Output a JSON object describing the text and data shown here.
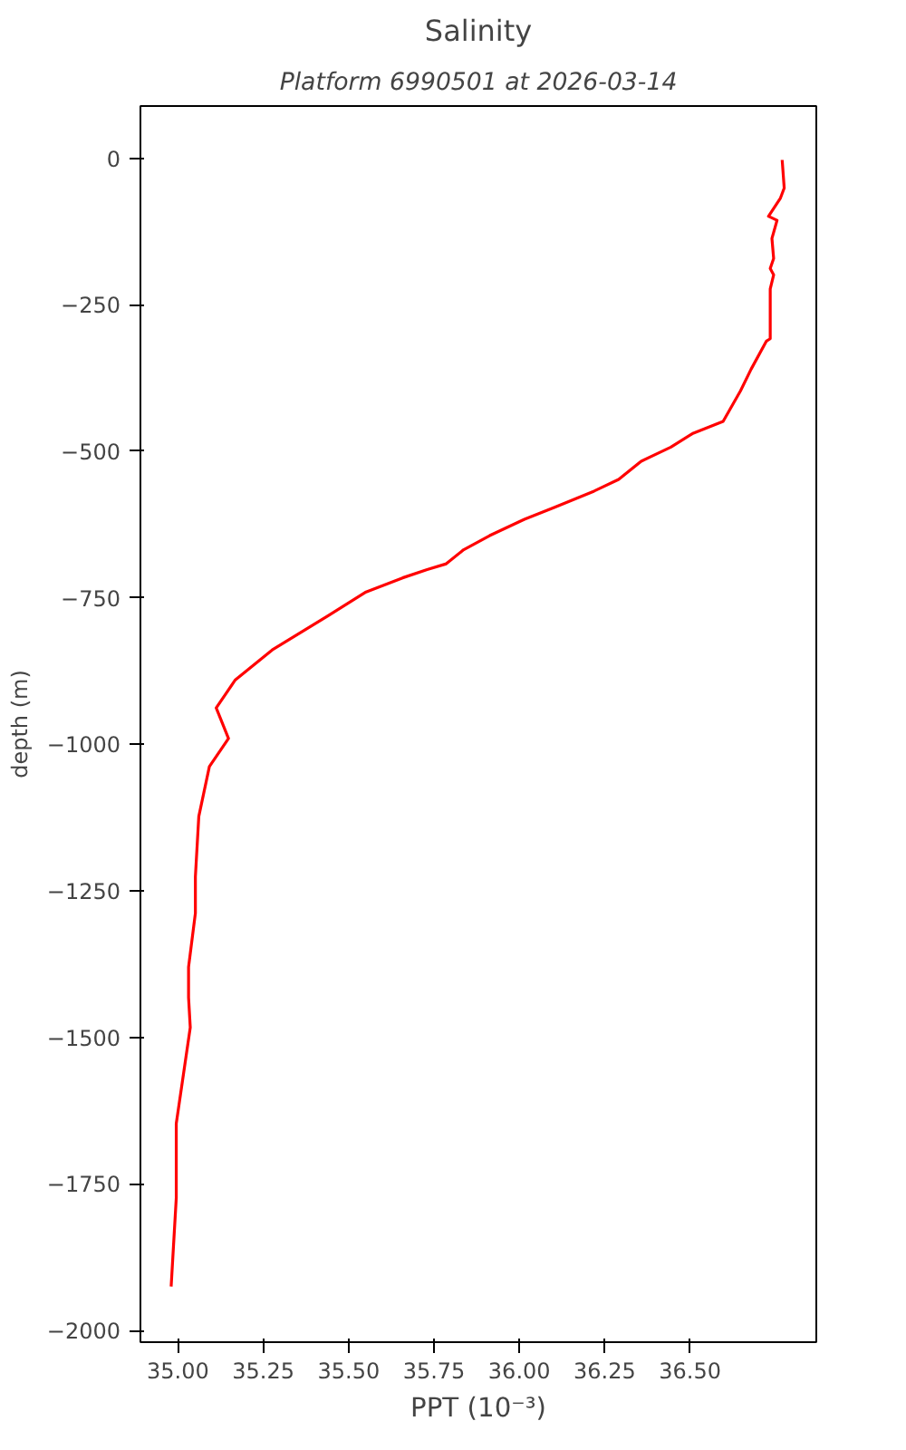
{
  "chart_data": {
    "type": "line",
    "title": "Salinity",
    "subtitle": "Platform 6990501 at 2026-03-14",
    "xlabel": "PPT (10⁻³)",
    "ylabel": "depth (m)",
    "series": [
      {
        "color": "#ff0000",
        "x": [
          36.77,
          36.776,
          36.765,
          36.73,
          36.755,
          36.74,
          36.745,
          36.735,
          36.745,
          36.735,
          36.735,
          36.724,
          36.679,
          36.648,
          36.597,
          36.51,
          36.444,
          36.357,
          36.291,
          36.219,
          36.102,
          36.015,
          35.913,
          35.837,
          35.786,
          35.73,
          35.658,
          35.551,
          35.439,
          35.276,
          35.168,
          35.112,
          35.148,
          35.092,
          35.061,
          35.051,
          35.051,
          35.031,
          35.031,
          35.036,
          34.995,
          34.995,
          34.995,
          34.98
        ],
        "values": [
          -3,
          -51,
          -68,
          -99,
          -106,
          -137,
          -171,
          -188,
          -199,
          -223,
          -308,
          -312,
          -360,
          -397,
          -449,
          -469,
          -493,
          -517,
          -548,
          -568,
          -596,
          -616,
          -644,
          -668,
          -692,
          -702,
          -716,
          -740,
          -781,
          -839,
          -890,
          -938,
          -990,
          -1038,
          -1123,
          -1226,
          -1288,
          -1380,
          -1432,
          -1483,
          -1647,
          -1682,
          -1774,
          -1925
        ]
      }
    ],
    "xlim": [
      34.89,
      36.87
    ],
    "ylim": [
      -2020,
      89
    ],
    "xticks": [
      {
        "value": 35,
        "label": "35.00"
      },
      {
        "value": 35.25,
        "label": "35.25"
      },
      {
        "value": 35.5,
        "label": "35.50"
      },
      {
        "value": 35.75,
        "label": "35.75"
      },
      {
        "value": 36,
        "label": "36.00"
      },
      {
        "value": 36.25,
        "label": "36.25"
      },
      {
        "value": 36.5,
        "label": "36.50"
      }
    ],
    "yticks": [
      0,
      {
        "value": -250,
        "label": "−250"
      },
      {
        "value": -500,
        "label": "−500"
      },
      {
        "value": -750,
        "label": "−750"
      },
      {
        "value": -1000,
        "label": "−1000"
      },
      {
        "value": -1250,
        "label": "−1250"
      },
      {
        "value": -1500,
        "label": "−1500"
      },
      {
        "value": -1750,
        "label": "−1750"
      },
      {
        "value": -2000,
        "label": "−2000"
      }
    ],
    "grid": false,
    "line_style": "solid"
  }
}
